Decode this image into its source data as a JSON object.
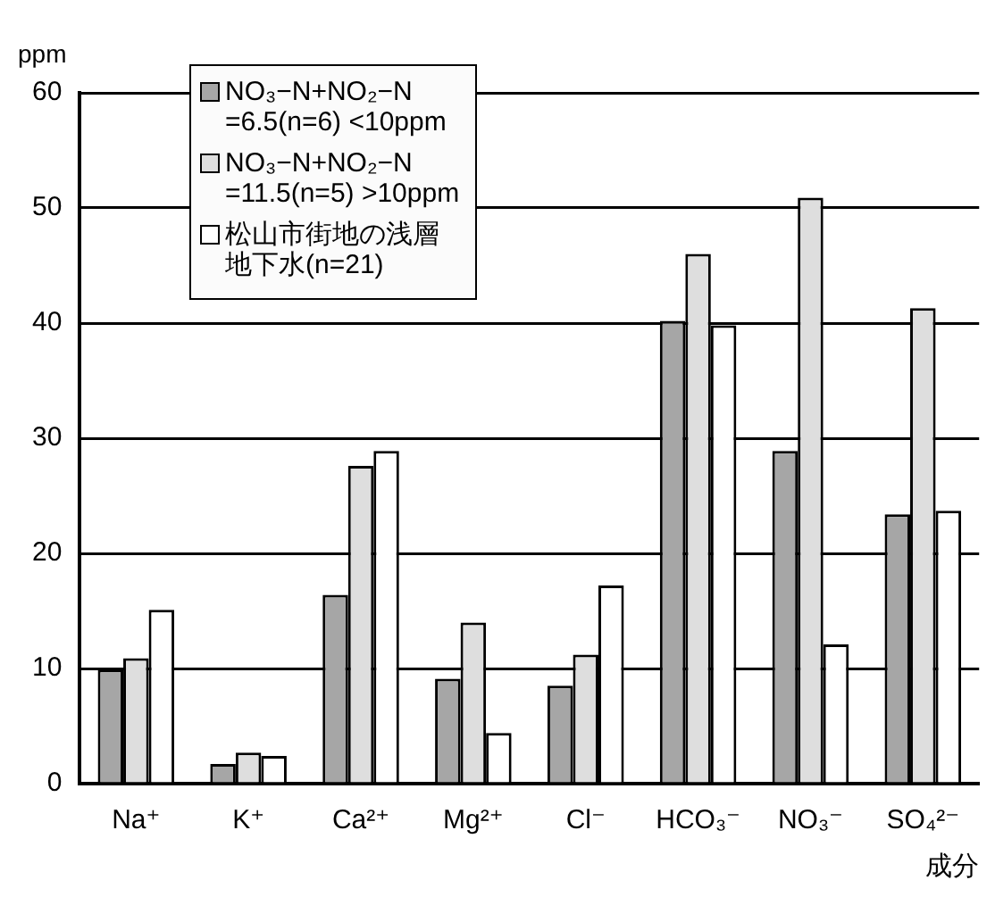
{
  "chart_data": {
    "type": "bar",
    "xlabel": "成分",
    "ylabel": "ppm",
    "categories": [
      "Na⁺",
      "K⁺",
      "Ca²⁺",
      "Mg²⁺",
      "Cl⁻",
      "HCO₃⁻",
      "NO₃⁻",
      "SO₄²⁻"
    ],
    "series": [
      {
        "name": "NO₃−N+NO₂−N =6.5(n=6) <10ppm",
        "color": "#a6a6a6",
        "values": [
          9.9,
          1.7,
          16.4,
          9.1,
          8.5,
          40.2,
          28.9,
          23.4
        ]
      },
      {
        "name": "NO₃−N+NO₂−N =11.5(n=5) >10ppm",
        "color": "#dedede",
        "values": [
          10.9,
          2.7,
          27.6,
          14.0,
          11.2,
          46.0,
          50.9,
          41.3
        ]
      },
      {
        "name": "松山市街地の浅層地下水(n=21)",
        "color": "#ffffff",
        "values": [
          15.1,
          2.4,
          28.9,
          4.4,
          17.2,
          39.8,
          12.1,
          23.7
        ]
      }
    ],
    "ylim": [
      0,
      60
    ],
    "yticks": [
      0,
      10,
      20,
      30,
      40,
      50,
      60
    ],
    "grid": "y",
    "legend": "top left"
  }
}
